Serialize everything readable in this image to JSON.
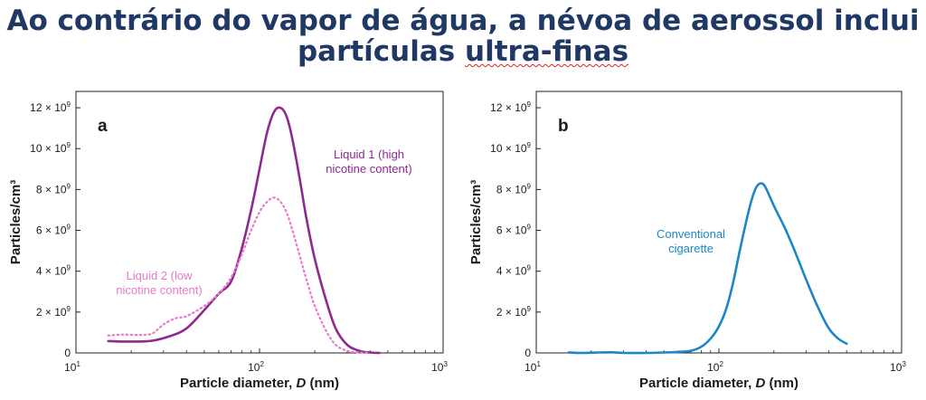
{
  "slide": {
    "title_line1": "Ao contrário do vapor de água, a névoa de aerossol inclui",
    "title_line2_a": "partículas ",
    "title_line2_b": "ultra-finas",
    "accent_color": "#1f3864"
  },
  "chart_data": [
    {
      "type": "line",
      "panel_label": "a",
      "xlabel": "Particle diameter, D (nm)",
      "ylabel": "Particles/cm³",
      "xscale": "log",
      "xlim": [
        10,
        1000
      ],
      "ylim": [
        0,
        12800000000.0
      ],
      "xticks": [
        {
          "v": 10,
          "base": "10",
          "exp": "1"
        },
        {
          "v": 100,
          "base": "10",
          "exp": "2"
        },
        {
          "v": 1000,
          "base": "10",
          "exp": "3"
        }
      ],
      "yticks": [
        {
          "v": 0,
          "label": "0"
        },
        {
          "v": 2000000000.0,
          "label": "2 × 10",
          "exp": "9"
        },
        {
          "v": 4000000000.0,
          "label": "4 × 10",
          "exp": "9"
        },
        {
          "v": 6000000000.0,
          "label": "6 × 10",
          "exp": "9"
        },
        {
          "v": 8000000000.0,
          "label": "8 × 10",
          "exp": "9"
        },
        {
          "v": 10000000000.0,
          "label": "10 × 10",
          "exp": "9"
        },
        {
          "v": 12000000000.0,
          "label": "12 × 10",
          "exp": "9"
        }
      ],
      "series": [
        {
          "name": "Liquid 1 (high nicotine content)",
          "label_lines": [
            "Liquid 1 (high",
            "nicotine content)"
          ],
          "color": "#8e2a8f",
          "style": "solid",
          "x": [
            15,
            18,
            22,
            26,
            32,
            40,
            50,
            60,
            70,
            80,
            90,
            100,
            110,
            120,
            130,
            140,
            150,
            165,
            180,
            200,
            230,
            260,
            300,
            350,
            400,
            450
          ],
          "y": [
            580000000.0,
            560000000.0,
            560000000.0,
            600000000.0,
            800000000.0,
            1200000000.0,
            2100000000.0,
            2900000000.0,
            3500000000.0,
            5100000000.0,
            7000000000.0,
            9000000000.0,
            10800000000.0,
            11800000000.0,
            12000000000.0,
            11600000000.0,
            10600000000.0,
            8600000000.0,
            6600000000.0,
            4600000000.0,
            2600000000.0,
            1200000000.0,
            400000000.0,
            100000000.0,
            20000000.0,
            0.0
          ]
        },
        {
          "name": "Liquid 2 (low nicotine content)",
          "label_lines": [
            "Liquid 2 (low",
            "nicotine content)"
          ],
          "color": "#e87ac8",
          "style": "dotted",
          "x": [
            15,
            18,
            22,
            26,
            30,
            35,
            40,
            50,
            60,
            70,
            80,
            90,
            100,
            110,
            120,
            130,
            140,
            150,
            165,
            180,
            200,
            230,
            260,
            300,
            350,
            400
          ],
          "y": [
            850000000.0,
            900000000.0,
            880000000.0,
            950000000.0,
            1400000000.0,
            1700000000.0,
            1800000000.0,
            2300000000.0,
            2900000000.0,
            3700000000.0,
            4800000000.0,
            6000000000.0,
            6900000000.0,
            7400000000.0,
            7600000000.0,
            7400000000.0,
            6900000000.0,
            6100000000.0,
            4800000000.0,
            3600000000.0,
            2300000000.0,
            1100000000.0,
            400000000.0,
            100000000.0,
            20000000.0,
            0.0
          ]
        }
      ]
    },
    {
      "type": "line",
      "panel_label": "b",
      "xlabel": "Particle diameter, D (nm)",
      "ylabel": "Particles/cm³",
      "xscale": "log",
      "xlim": [
        10,
        1000
      ],
      "ylim": [
        0,
        12800000000.0
      ],
      "xticks": [
        {
          "v": 10,
          "base": "10",
          "exp": "1"
        },
        {
          "v": 100,
          "base": "10",
          "exp": "2"
        },
        {
          "v": 1000,
          "base": "10",
          "exp": "3"
        }
      ],
      "yticks": [
        {
          "v": 0,
          "label": "0"
        },
        {
          "v": 2000000000.0,
          "label": "2 × 10",
          "exp": "9"
        },
        {
          "v": 4000000000.0,
          "label": "4 × 10",
          "exp": "9"
        },
        {
          "v": 6000000000.0,
          "label": "6 × 10",
          "exp": "9"
        },
        {
          "v": 8000000000.0,
          "label": "8 × 10",
          "exp": "9"
        },
        {
          "v": 10000000000.0,
          "label": "10 × 10",
          "exp": "9"
        },
        {
          "v": 12000000000.0,
          "label": "12 × 10",
          "exp": "9"
        }
      ],
      "series": [
        {
          "name": "Conventional cigarette",
          "label_lines": [
            "Conventional",
            "cigarette"
          ],
          "color": "#1c86c6",
          "style": "solid",
          "x": [
            15,
            18,
            22,
            26,
            30,
            40,
            50,
            60,
            70,
            80,
            90,
            100,
            110,
            120,
            130,
            140,
            150,
            160,
            170,
            180,
            200,
            230,
            260,
            300,
            350,
            400,
            450,
            500
          ],
          "y": [
            20000000.0,
            0.0,
            20000000.0,
            30000000.0,
            0.0,
            0.0,
            20000000.0,
            50000000.0,
            100000000.0,
            300000000.0,
            700000000.0,
            1300000000.0,
            2200000000.0,
            3500000000.0,
            5000000000.0,
            6300000000.0,
            7400000000.0,
            8100000000.0,
            8300000000.0,
            8100000000.0,
            7200000000.0,
            6100000000.0,
            5000000000.0,
            3600000000.0,
            2200000000.0,
            1200000000.0,
            700000000.0,
            450000000.0
          ]
        }
      ]
    }
  ]
}
